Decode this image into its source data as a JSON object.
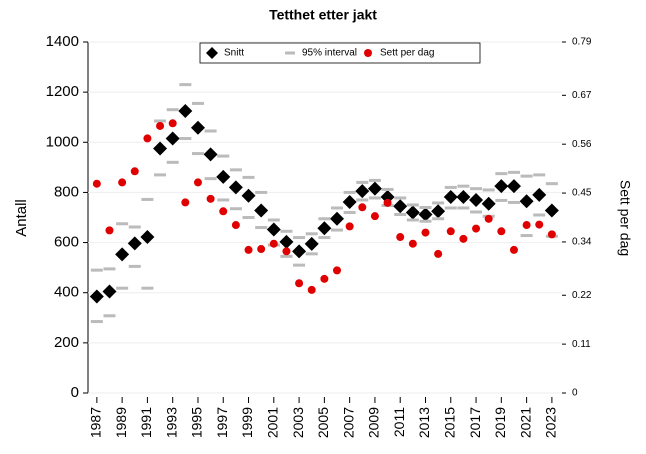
{
  "chart_data": {
    "type": "scatter",
    "title": "Tetthet etter jakt",
    "y_label": "Antall",
    "y2_label": "Sett per dag",
    "x": [
      1987,
      1988,
      1989,
      1990,
      1991,
      1992,
      1993,
      1994,
      1995,
      1996,
      1997,
      1998,
      1999,
      2000,
      2001,
      2002,
      2003,
      2004,
      2005,
      2006,
      2007,
      2008,
      2009,
      2010,
      2011,
      2012,
      2013,
      2014,
      2015,
      2016,
      2017,
      2018,
      2019,
      2020,
      2021,
      2022,
      2023
    ],
    "xlim": [
      1986.3,
      2023.8
    ],
    "xticks": [
      1987,
      1989,
      1991,
      1993,
      1995,
      1997,
      1999,
      2001,
      2003,
      2005,
      2007,
      2009,
      2011,
      2013,
      2015,
      2017,
      2019,
      2021,
      2023
    ],
    "ylim": [
      0,
      1400
    ],
    "yticks": [
      0,
      200,
      400,
      600,
      800,
      1000,
      1200,
      1400
    ],
    "y2lim": [
      0,
      0.79
    ],
    "y2ticks": [
      0,
      0.11,
      0.22,
      0.34,
      0.45,
      0.56,
      0.67,
      0.79
    ],
    "grid": true,
    "series": [
      {
        "name": "Snitt",
        "color": "#000000",
        "marker": "diamond",
        "values": [
          385,
          405,
          553,
          597,
          622,
          975,
          1015,
          1125,
          1058,
          952,
          862,
          820,
          787,
          728,
          652,
          603,
          565,
          595,
          657,
          695,
          762,
          805,
          815,
          782,
          745,
          720,
          712,
          725,
          782,
          782,
          770,
          755,
          825,
          825,
          765,
          790,
          728
        ]
      },
      {
        "name": "95% interval",
        "color": "#bbbbbb",
        "marker": "dash",
        "lower": [
          285,
          308,
          418,
          505,
          418,
          870,
          920,
          1015,
          955,
          855,
          770,
          735,
          700,
          660,
          590,
          545,
          510,
          555,
          620,
          650,
          720,
          770,
          778,
          748,
          712,
          690,
          685,
          695,
          738,
          738,
          722,
          705,
          768,
          760,
          628,
          710,
          625
        ],
        "upper": [
          490,
          495,
          675,
          662,
          772,
          1085,
          1130,
          1230,
          1155,
          1045,
          945,
          890,
          860,
          800,
          690,
          645,
          620,
          635,
          695,
          738,
          800,
          840,
          848,
          812,
          778,
          750,
          740,
          758,
          820,
          825,
          815,
          810,
          875,
          880,
          865,
          870,
          835
        ]
      },
      {
        "name": "Sett per dag",
        "color": "#e00000",
        "marker": "circle",
        "axis": "y2",
        "values": [
          0.471,
          0.366,
          0.474,
          0.499,
          0.573,
          0.601,
          0.607,
          0.429,
          0.474,
          0.437,
          0.409,
          0.378,
          0.322,
          0.324,
          0.336,
          0.319,
          0.247,
          0.232,
          0.257,
          0.276,
          0.375,
          0.418,
          0.398,
          0.428,
          0.351,
          0.336,
          0.361,
          0.313,
          0.364,
          0.347,
          0.37,
          0.392,
          0.364,
          0.322,
          0.378,
          0.379,
          0.357
        ]
      }
    ]
  }
}
